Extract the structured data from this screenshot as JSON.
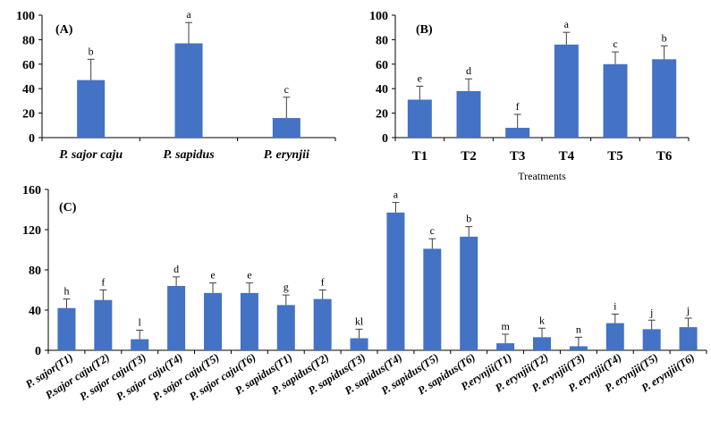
{
  "chart_data": [
    {
      "type": "bar",
      "panel_label": "(A)",
      "categories": [
        "P. sajor caju",
        "P. sapidus",
        "P. erynjii"
      ],
      "values": [
        47,
        77,
        16
      ],
      "error_upper": [
        64,
        94,
        33
      ],
      "significance": [
        "b",
        "a",
        "c"
      ],
      "yticks": [
        "0",
        "20",
        "40",
        "60",
        "80",
        "100"
      ],
      "ylim": [
        0,
        100
      ],
      "xlabel": "",
      "ylabel": "",
      "color": "#4472C4",
      "grid": false
    },
    {
      "type": "bar",
      "panel_label": "(B)",
      "categories": [
        "T1",
        "T2",
        "T3",
        "T4",
        "T5",
        "T6"
      ],
      "values": [
        31,
        38,
        8,
        76,
        60,
        64
      ],
      "error_upper": [
        42,
        48,
        19,
        86,
        70,
        75
      ],
      "significance": [
        "e",
        "d",
        "f",
        "a",
        "c",
        "b"
      ],
      "yticks": [
        "0",
        "20",
        "40",
        "60",
        "80",
        "100"
      ],
      "ylim": [
        0,
        100
      ],
      "xlabel": "Treatments",
      "ylabel": "",
      "color": "#4472C4",
      "grid": false
    },
    {
      "type": "bar",
      "panel_label": "(C)",
      "categories": [
        "P. sajor(T1)",
        "P.sajor caju(T2)",
        "P. sajor caju(T3)",
        "P. sajor caju(T4)",
        "P. sajor caju(T5)",
        "P. sajor caju(T6)",
        "P. sapidus(T1)",
        "P. sapidus(T2)",
        "P. sapidus(T3)",
        "P. sapidus(T4)",
        "P. sapidus(T5)",
        "P. sapidus(T6)",
        "P.erynjii(T1)",
        "P. erynjii(T2)",
        "P. erynjii(T3)",
        "P. erynjii(T4)",
        "P. erynjii(T5)",
        "P. erynjii(T6)"
      ],
      "values": [
        42,
        50,
        11,
        64,
        57,
        57,
        45,
        51,
        12,
        137,
        101,
        113,
        7,
        13,
        4,
        27,
        21,
        23
      ],
      "error_upper": [
        51,
        60,
        20,
        73,
        67,
        67,
        55,
        60,
        21,
        147,
        111,
        123,
        16,
        22,
        13,
        36,
        30,
        32
      ],
      "significance": [
        "h",
        "f",
        "l",
        "d",
        "e",
        "e",
        "g",
        "f",
        "kl",
        "a",
        "c",
        "b",
        "m",
        "k",
        "n",
        "i",
        "j",
        "j"
      ],
      "yticks": [
        "0",
        "40",
        "80",
        "120",
        "160"
      ],
      "ylim": [
        0,
        160
      ],
      "xlabel": "",
      "ylabel": "",
      "color": "#4472C4",
      "grid": false
    }
  ]
}
